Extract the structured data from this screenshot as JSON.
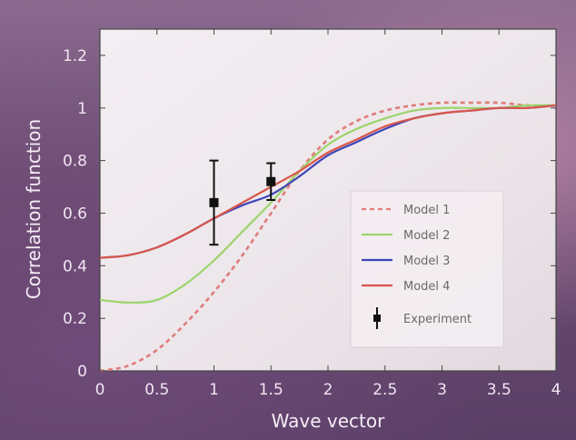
{
  "chart_data": {
    "type": "line",
    "title": "",
    "xlabel": "Wave vector",
    "ylabel": "Correlation function",
    "xlim": [
      0,
      4
    ],
    "ylim": [
      0,
      1.3
    ],
    "xticks": [
      "0",
      "0.5",
      "1",
      "1.5",
      "2",
      "2.5",
      "3",
      "3.5",
      "4"
    ],
    "yticks": [
      "0",
      "0.2",
      "0.4",
      "0.6",
      "0.8",
      "1",
      "1.2"
    ],
    "grid": false,
    "legend_position": "lower-right",
    "series": [
      {
        "name": "Model 1",
        "color": "#e07b7b",
        "style": "dashed",
        "x": [
          0.0,
          0.25,
          0.5,
          0.75,
          1.0,
          1.25,
          1.5,
          1.75,
          2.0,
          2.25,
          2.5,
          2.75,
          3.0,
          3.25,
          3.5,
          3.75,
          4.0
        ],
        "y": [
          0.0,
          0.02,
          0.08,
          0.18,
          0.3,
          0.44,
          0.6,
          0.76,
          0.88,
          0.95,
          0.99,
          1.01,
          1.02,
          1.02,
          1.02,
          1.01,
          1.01
        ]
      },
      {
        "name": "Model 2",
        "color": "#9cd46a",
        "style": "solid",
        "x": [
          0.0,
          0.25,
          0.5,
          0.75,
          1.0,
          1.25,
          1.5,
          1.75,
          2.0,
          2.25,
          2.5,
          2.75,
          3.0,
          3.25,
          3.5,
          3.75,
          4.0
        ],
        "y": [
          0.27,
          0.26,
          0.27,
          0.33,
          0.42,
          0.53,
          0.64,
          0.76,
          0.86,
          0.92,
          0.96,
          0.99,
          1.0,
          1.0,
          1.0,
          1.01,
          1.01
        ]
      },
      {
        "name": "Model 3",
        "color": "#3d44b8",
        "style": "solid",
        "x": [
          0.0,
          0.25,
          0.5,
          0.75,
          1.0,
          1.25,
          1.5,
          1.75,
          2.0,
          2.25,
          2.5,
          2.75,
          3.0,
          3.25,
          3.5,
          3.75,
          4.0
        ],
        "y": [
          0.43,
          0.44,
          0.47,
          0.52,
          0.58,
          0.63,
          0.67,
          0.74,
          0.82,
          0.87,
          0.92,
          0.96,
          0.98,
          0.99,
          1.0,
          1.0,
          1.01
        ]
      },
      {
        "name": "Model 4",
        "color": "#d9554a",
        "style": "solid",
        "x": [
          0.0,
          0.25,
          0.5,
          0.75,
          1.0,
          1.25,
          1.5,
          1.75,
          2.0,
          2.25,
          2.5,
          2.75,
          3.0,
          3.25,
          3.5,
          3.75,
          4.0
        ],
        "y": [
          0.43,
          0.44,
          0.47,
          0.52,
          0.58,
          0.64,
          0.7,
          0.76,
          0.83,
          0.88,
          0.93,
          0.96,
          0.98,
          0.99,
          1.0,
          1.0,
          1.01
        ]
      }
    ],
    "experiment": {
      "name": "Experiment",
      "color": "#111111",
      "points": [
        {
          "x": 1.0,
          "y": 0.64,
          "err": 0.16
        },
        {
          "x": 1.5,
          "y": 0.72,
          "err": 0.07
        }
      ]
    }
  }
}
